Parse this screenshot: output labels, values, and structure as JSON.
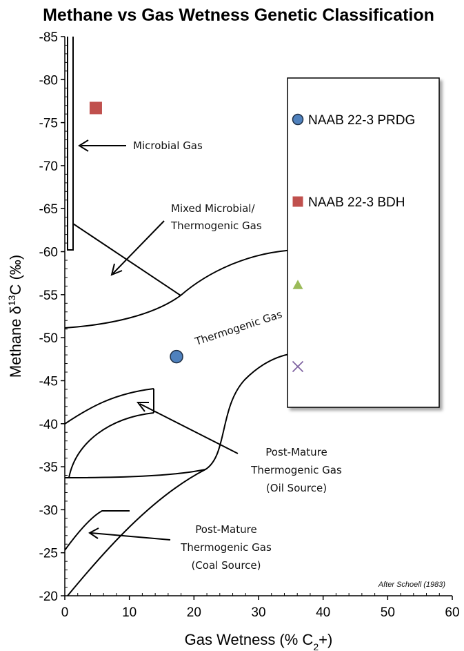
{
  "chart_data": {
    "type": "scatter",
    "title": "Methane vs Gas Wetness Genetic Classification",
    "xlabel": {
      "main": "Gas Wetness (% C",
      "sub": "2",
      "tail": "+)"
    },
    "ylabel": {
      "main": "Methane  δ",
      "sup": "13",
      "tail": "C (‰)"
    },
    "xlim": [
      0,
      60
    ],
    "ylim": [
      -85,
      -20
    ],
    "y_reversed": true,
    "x_ticks": [
      "0",
      "10",
      "20",
      "30",
      "40",
      "50",
      "60"
    ],
    "y_ticks": [
      "-85",
      "-80",
      "-75",
      "-70",
      "-65",
      "-60",
      "-55",
      "-50",
      "-45",
      "-40",
      "-35",
      "-30",
      "-25",
      "-20"
    ],
    "series": [
      {
        "name": "NAAB 22-3 PRDG",
        "marker": "circle",
        "color": "#4f81bd",
        "points": [
          [
            17.3,
            -47.8
          ]
        ]
      },
      {
        "name": "NAAB 22-3 BDH",
        "marker": "square",
        "color": "#c0504d",
        "points": [
          [
            4.8,
            -76.7
          ]
        ]
      },
      {
        "name": "",
        "marker": "triangle",
        "color": "#9bbb59",
        "points": []
      },
      {
        "name": "",
        "marker": "x",
        "color": "#8064a2",
        "points": []
      }
    ],
    "legend_position": "right",
    "annotations": {
      "microbial": "Microbial Gas",
      "mixed_1": "Mixed Microbial/",
      "mixed_2": "Thermogenic Gas",
      "thermogenic": "Thermogenic Gas",
      "pm_oil_1": "Post-Mature",
      "pm_oil_2": "Thermogenic Gas",
      "pm_oil_3": "(Oil Source)",
      "pm_coal_1": "Post-Mature",
      "pm_coal_2": "Thermogenic Gas",
      "pm_coal_3": "(Coal Source)",
      "credit": "After Schoell (1983)"
    }
  }
}
